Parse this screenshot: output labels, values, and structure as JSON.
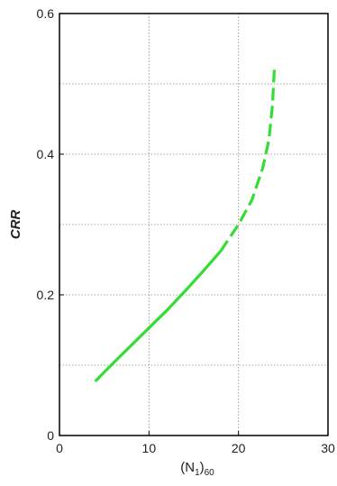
{
  "chart_data": {
    "type": "line",
    "xlabel": {
      "prefix": "(N",
      "sub": "1",
      "mid": ")",
      "suffix": "60"
    },
    "ylabel": "CRR",
    "xlim": [
      0,
      30
    ],
    "ylim": [
      0,
      0.6
    ],
    "x_ticks": [
      0,
      10,
      20,
      30
    ],
    "x_tick_labels": [
      "0",
      "10",
      "20",
      "30"
    ],
    "y_ticks_labeled": [
      0,
      0.2,
      0.4,
      0.6
    ],
    "y_tick_labels": [
      "0",
      "0.2",
      "0.4",
      "0.6"
    ],
    "x_grid": [
      10,
      20
    ],
    "y_grid": [
      0.1,
      0.2,
      0.3,
      0.4,
      0.5
    ],
    "grid": true,
    "grid_style": "dotted",
    "series": [
      {
        "style": "solid",
        "color": "#33dd33",
        "points": [
          {
            "x": 4,
            "y": 0.077
          },
          {
            "x": 6,
            "y": 0.103
          },
          {
            "x": 8,
            "y": 0.128
          },
          {
            "x": 10,
            "y": 0.153
          },
          {
            "x": 12,
            "y": 0.178
          },
          {
            "x": 14,
            "y": 0.205
          },
          {
            "x": 16,
            "y": 0.233
          },
          {
            "x": 18,
            "y": 0.262
          }
        ]
      },
      {
        "style": "dashed",
        "color": "#33dd33",
        "points": [
          {
            "x": 18,
            "y": 0.262
          },
          {
            "x": 20,
            "y": 0.3
          },
          {
            "x": 21.5,
            "y": 0.335
          },
          {
            "x": 22.7,
            "y": 0.38
          },
          {
            "x": 23.4,
            "y": 0.42
          },
          {
            "x": 23.8,
            "y": 0.47
          },
          {
            "x": 24,
            "y": 0.52
          }
        ]
      }
    ]
  }
}
